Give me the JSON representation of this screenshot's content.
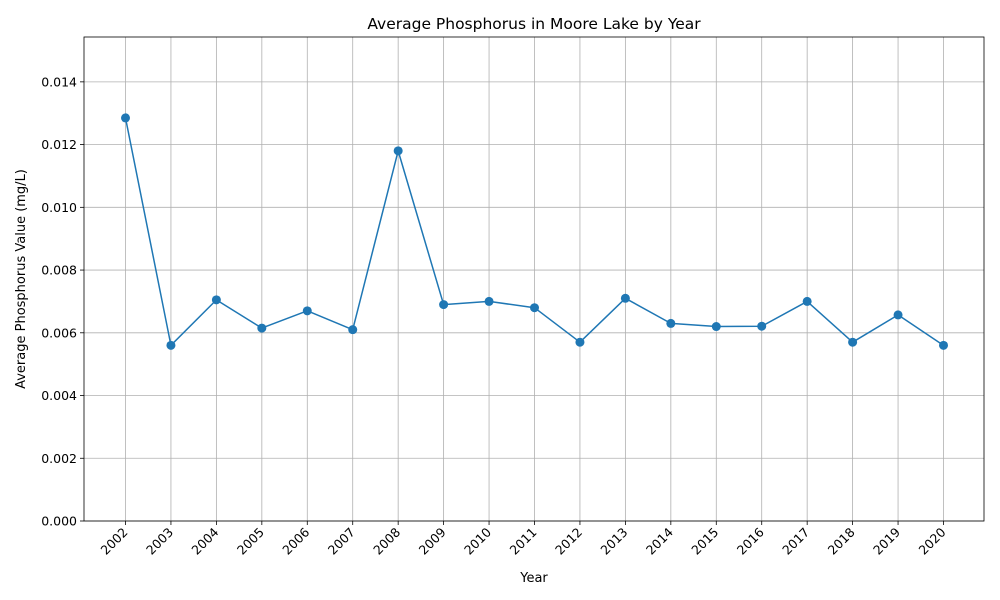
{
  "chart_data": {
    "type": "line",
    "title": "Average Phosphorus in Moore Lake by Year",
    "xlabel": "Year",
    "ylabel": "Average Phosphorus Value (mg/L)",
    "categories": [
      "2002",
      "2003",
      "2004",
      "2005",
      "2006",
      "2007",
      "2008",
      "2009",
      "2010",
      "2011",
      "2012",
      "2013",
      "2014",
      "2015",
      "2016",
      "2017",
      "2018",
      "2019",
      "2020"
    ],
    "series": [
      {
        "values": [
          0.01285,
          0.0056,
          0.00705,
          0.00615,
          0.0067,
          0.0061,
          0.0118,
          0.0069,
          0.007,
          0.0068,
          0.0057,
          0.0071,
          0.0063,
          0.0062,
          0.00621,
          0.007,
          0.0057,
          0.00657,
          0.0056
        ]
      }
    ],
    "ylim": [
      0,
      0.01543
    ],
    "yticks": [
      "0.000",
      "0.002",
      "0.004",
      "0.006",
      "0.008",
      "0.010",
      "0.012",
      "0.014"
    ],
    "grid": true,
    "markers": "circle",
    "line_color": "#1f77b4",
    "grid_color": "#b0b0b0"
  }
}
